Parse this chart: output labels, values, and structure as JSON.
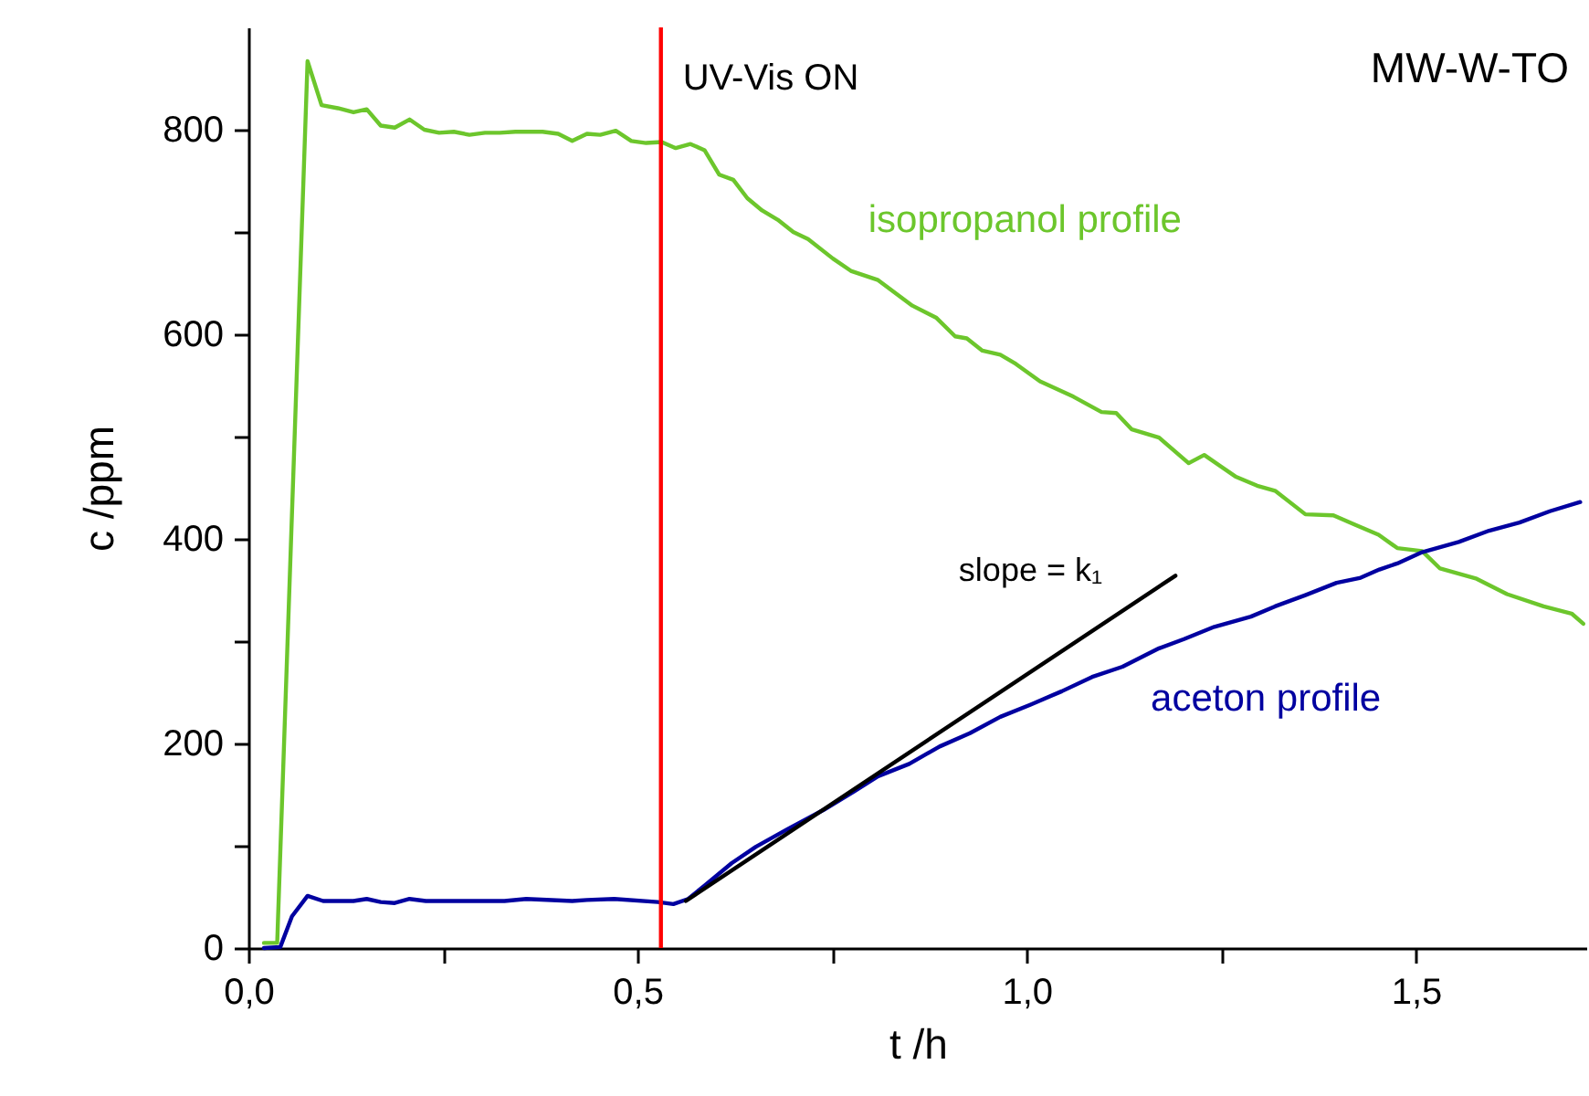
{
  "chart_data": {
    "type": "line",
    "xlabel": "t /h",
    "ylabel": "c /ppm",
    "xlim": [
      0,
      1.72
    ],
    "ylim": [
      0,
      900
    ],
    "xticks": [
      {
        "value": 0,
        "label": "0,0"
      },
      {
        "value": 0.25,
        "label": null
      },
      {
        "value": 0.5,
        "label": "0,5"
      },
      {
        "value": 0.75,
        "label": null
      },
      {
        "value": 1,
        "label": "1,0"
      },
      {
        "value": 1.25,
        "label": null
      },
      {
        "value": 1.5,
        "label": "1,5"
      }
    ],
    "yticks": [
      0,
      {
        "value": 100,
        "label": null
      },
      200,
      {
        "value": 300,
        "label": null
      },
      400,
      {
        "value": 500,
        "label": null
      },
      600,
      {
        "value": 700,
        "label": null
      },
      800
    ],
    "series": [
      {
        "name": "isopropanol profile",
        "color": "#6cc62c",
        "x": [
          0.02,
          0.037,
          0.076,
          0.094,
          0.115,
          0.135,
          0.152,
          0.17,
          0.188,
          0.207,
          0.226,
          0.245,
          0.264,
          0.284,
          0.304,
          0.323,
          0.343,
          0.362,
          0.378,
          0.398,
          0.416,
          0.435,
          0.452,
          0.472,
          0.492,
          0.511,
          0.531,
          0.549,
          0.568,
          0.586,
          0.605,
          0.623,
          0.641,
          0.66,
          0.68,
          0.7,
          0.719,
          0.751,
          0.774,
          0.809,
          0.853,
          0.884,
          0.908,
          0.923,
          0.943,
          0.966,
          0.986,
          1.017,
          1.06,
          1.096,
          1.115,
          1.135,
          1.17,
          1.208,
          1.228,
          1.268,
          1.296,
          1.319,
          1.358,
          1.394,
          1.421,
          1.452,
          1.476,
          1.508,
          1.531,
          1.578,
          1.617,
          1.664,
          1.7,
          1.715
        ],
        "values": [
          5,
          5,
          867,
          824,
          821,
          817,
          820,
          804,
          802,
          810,
          800,
          797,
          798,
          795,
          797,
          797,
          798,
          798,
          798,
          796,
          789,
          796,
          795,
          799,
          789,
          787,
          788,
          782,
          786,
          780,
          756,
          751,
          733,
          721,
          712,
          700,
          693,
          674,
          662,
          653,
          628,
          616,
          598,
          596,
          584,
          580,
          571,
          554,
          539,
          524,
          523,
          507,
          499,
          474,
          482,
          461,
          452,
          447,
          424,
          423,
          414,
          404,
          391,
          388,
          371,
          361,
          346,
          334,
          327,
          317
        ]
      },
      {
        "name": "aceton profile",
        "color": "#0000a0",
        "x": [
          0.02,
          0.041,
          0.056,
          0.076,
          0.096,
          0.135,
          0.152,
          0.17,
          0.188,
          0.207,
          0.228,
          0.282,
          0.329,
          0.357,
          0.416,
          0.435,
          0.47,
          0.526,
          0.546,
          0.565,
          0.586,
          0.621,
          0.652,
          0.692,
          0.739,
          0.778,
          0.809,
          0.849,
          0.888,
          0.927,
          0.966,
          1.005,
          1.045,
          1.084,
          1.123,
          1.17,
          1.202,
          1.241,
          1.288,
          1.319,
          1.358,
          1.398,
          1.429,
          1.453,
          1.476,
          1.508,
          1.555,
          1.594,
          1.633,
          1.672,
          1.711
        ],
        "values": [
          0,
          1,
          31,
          51,
          46,
          46,
          48,
          45,
          44,
          48,
          46,
          46,
          46,
          48,
          46,
          47,
          48,
          45,
          43,
          48,
          61,
          83,
          99,
          116,
          135,
          153,
          168,
          180,
          197,
          210,
          226,
          238,
          251,
          265,
          275,
          293,
          302,
          314,
          324,
          334,
          345,
          357,
          362,
          370,
          376,
          387,
          397,
          408,
          416,
          427,
          436
        ]
      },
      {
        "type": "line",
        "color": "#000000",
        "x": [
          0.562,
          1.191
        ],
        "values": [
          46,
          364
        ]
      }
    ],
    "ref_lines": [
      {
        "axis": "x",
        "value": 0.53,
        "label": "UV-Vis ON",
        "color": "#ff0000"
      }
    ],
    "annotations": [
      "MW-W-TO",
      {
        "text": "slope = k₁",
        "x": 1.191,
        "y": 364
      }
    ]
  }
}
